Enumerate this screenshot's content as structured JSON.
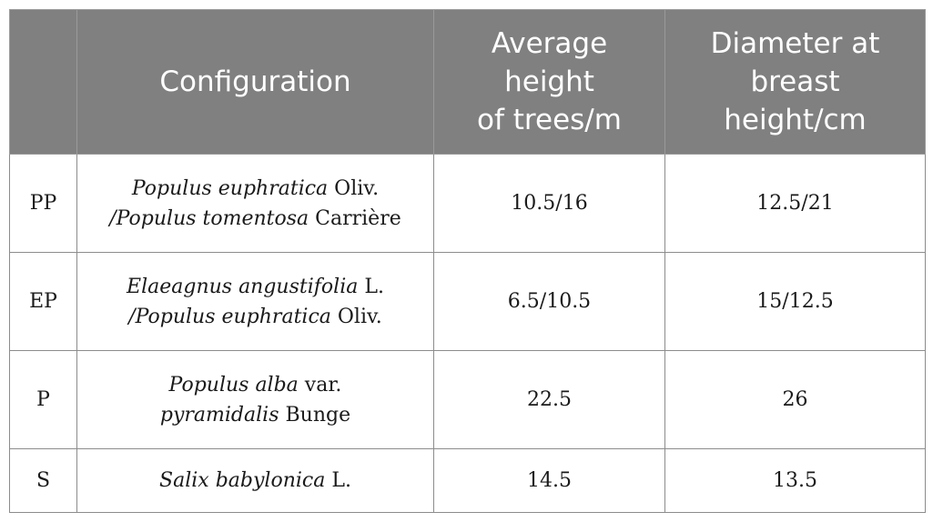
{
  "header": {
    "col0": "",
    "col1": "Configuration",
    "col2": [
      "Average",
      "height",
      "of trees/m"
    ],
    "col3": [
      "Diameter at",
      "breast",
      "height/cm"
    ]
  },
  "rows": [
    {
      "code": "PP",
      "config": [
        {
          "italic": "Populus euphratica",
          "plain": " Oliv."
        },
        {
          "italic": "/Populus tomentosa",
          "plain": " Carrière"
        }
      ],
      "height": "10.5/16",
      "dbh": "12.5/21"
    },
    {
      "code": "EP",
      "config": [
        {
          "italic": "Elaeagnus angustifolia",
          "plain": " L."
        },
        {
          "italic": "/Populus euphratica",
          "plain": " Oliv."
        }
      ],
      "height": "6.5/10.5",
      "dbh": "15/12.5"
    },
    {
      "code": "P",
      "config": [
        {
          "italic": "Populus alba",
          "plain": " var."
        },
        {
          "italic": "pyramidalis",
          "plain": " Bunge"
        }
      ],
      "height": "22.5",
      "dbh": "26"
    },
    {
      "code": "S",
      "config": [
        {
          "italic": "Salix babylonica",
          "plain": " L."
        }
      ],
      "height": "14.5",
      "dbh": "13.5"
    }
  ]
}
